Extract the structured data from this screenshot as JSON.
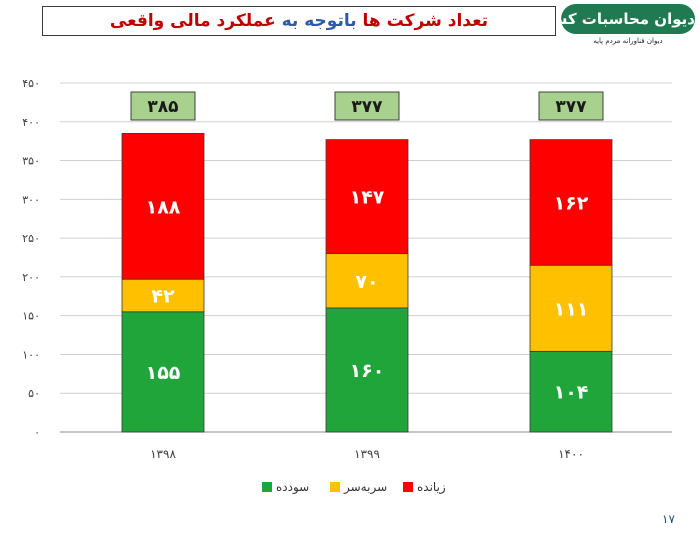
{
  "title": {
    "part1": "تعداد",
    "part2": "شرکت ها",
    "part3": "باتوجه به",
    "part4": "عملکرد مالی واقعی",
    "colors": [
      "#c00000",
      "#c00000",
      "#2e5aa6",
      "#c00000"
    ]
  },
  "logo": {
    "name": "دیوان محاسبات کشور",
    "subtitle": "دیوان فناورانه مردم پایه",
    "color": "#1f7a52"
  },
  "page_number": "۱۷",
  "chart_data": {
    "type": "bar",
    "stacked": true,
    "categories": [
      "۱۳۹۸",
      "۱۳۹۹",
      "۱۴۰۰"
    ],
    "series": [
      {
        "name": "سودده",
        "values": [
          155,
          160,
          104
        ],
        "labels": [
          "۱۵۵",
          "۱۶۰",
          "۱۰۴"
        ],
        "color": "#1fa53a"
      },
      {
        "name": "سربه‌سر",
        "values": [
          42,
          70,
          111
        ],
        "labels": [
          "۴۲",
          "۷۰",
          "۱۱۱"
        ],
        "color": "#ffc000"
      },
      {
        "name": "زیانده",
        "values": [
          188,
          147,
          162
        ],
        "labels": [
          "۱۸۸",
          "۱۴۷",
          "۱۶۲"
        ],
        "color": "#ff0000"
      }
    ],
    "totals": [
      385,
      377,
      377
    ],
    "total_labels": [
      "۳۸۵",
      "۳۷۷",
      "۳۷۷"
    ],
    "total_box_color": "#a9d18e",
    "ylim": [
      0,
      450
    ],
    "yticks": [
      0,
      50,
      100,
      150,
      200,
      250,
      300,
      350,
      400,
      450
    ],
    "ytick_labels": [
      "۰",
      "۵۰",
      "۱۰۰",
      "۱۵۰",
      "۲۰۰",
      "۲۵۰",
      "۳۰۰",
      "۳۵۰",
      "۴۰۰",
      "۴۵۰"
    ],
    "grid": true,
    "legend_position": "bottom-center"
  }
}
